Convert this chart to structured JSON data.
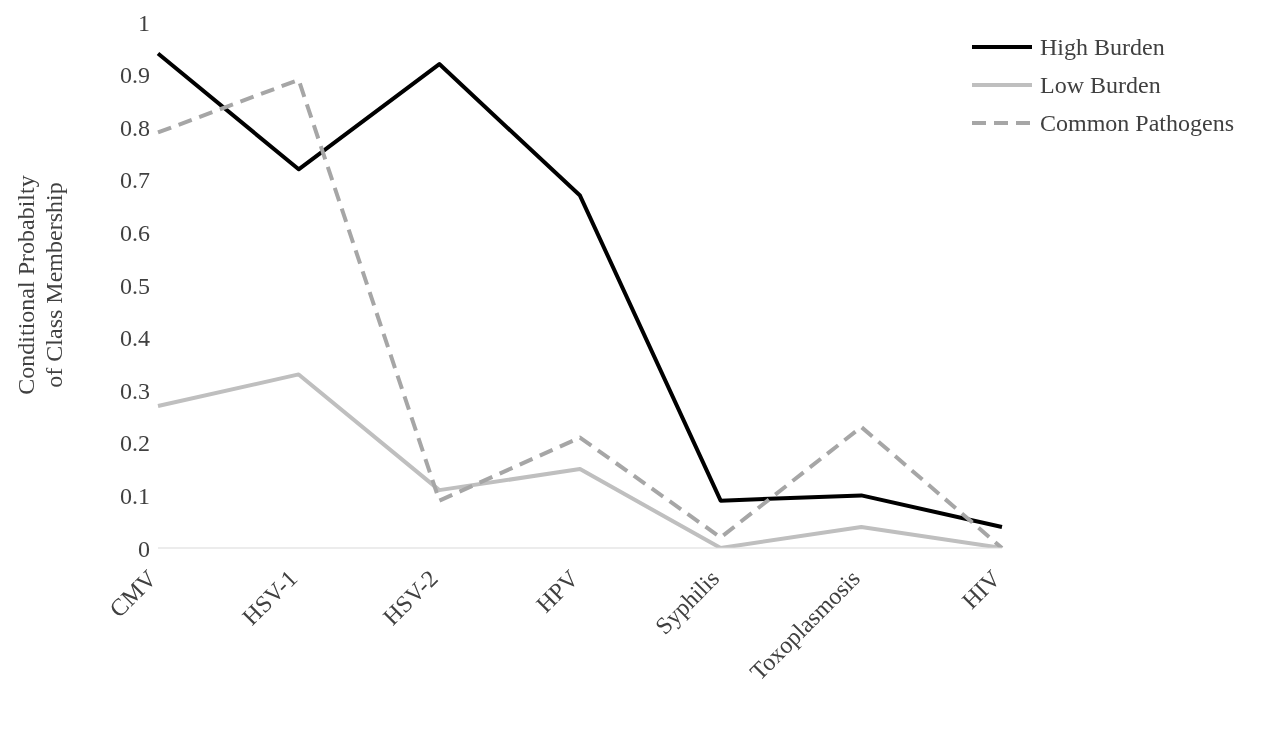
{
  "chart_data": {
    "type": "line",
    "ylabel": "Conditional Probabilty of Class Membership",
    "categories": [
      "CMV",
      "HSV-1",
      "HSV-2",
      "HPV",
      "Syphilis",
      "Toxoplasmosis",
      "HIV"
    ],
    "series": [
      {
        "name": "High Burden",
        "color": "#000000",
        "values": [
          0.94,
          0.72,
          0.92,
          0.67,
          0.09,
          0.1,
          0.04
        ]
      },
      {
        "name": "Low Burden",
        "color": "#bfbfbf",
        "values": [
          0.27,
          0.33,
          0.11,
          0.15,
          0.0,
          0.04,
          0.0
        ]
      },
      {
        "name": "Common Pathogens",
        "color": "#a6a6a6",
        "values": [
          0.79,
          0.89,
          0.09,
          0.21,
          0.02,
          0.23,
          0.0
        ],
        "line_style": "dashed"
      }
    ],
    "ylim": [
      0,
      1
    ],
    "yticks": [
      0,
      0.1,
      0.2,
      0.3,
      0.4,
      0.5,
      0.6,
      0.7,
      0.8,
      0.9,
      1
    ],
    "legend": "top right",
    "marker": "none",
    "line_style": "solid"
  }
}
